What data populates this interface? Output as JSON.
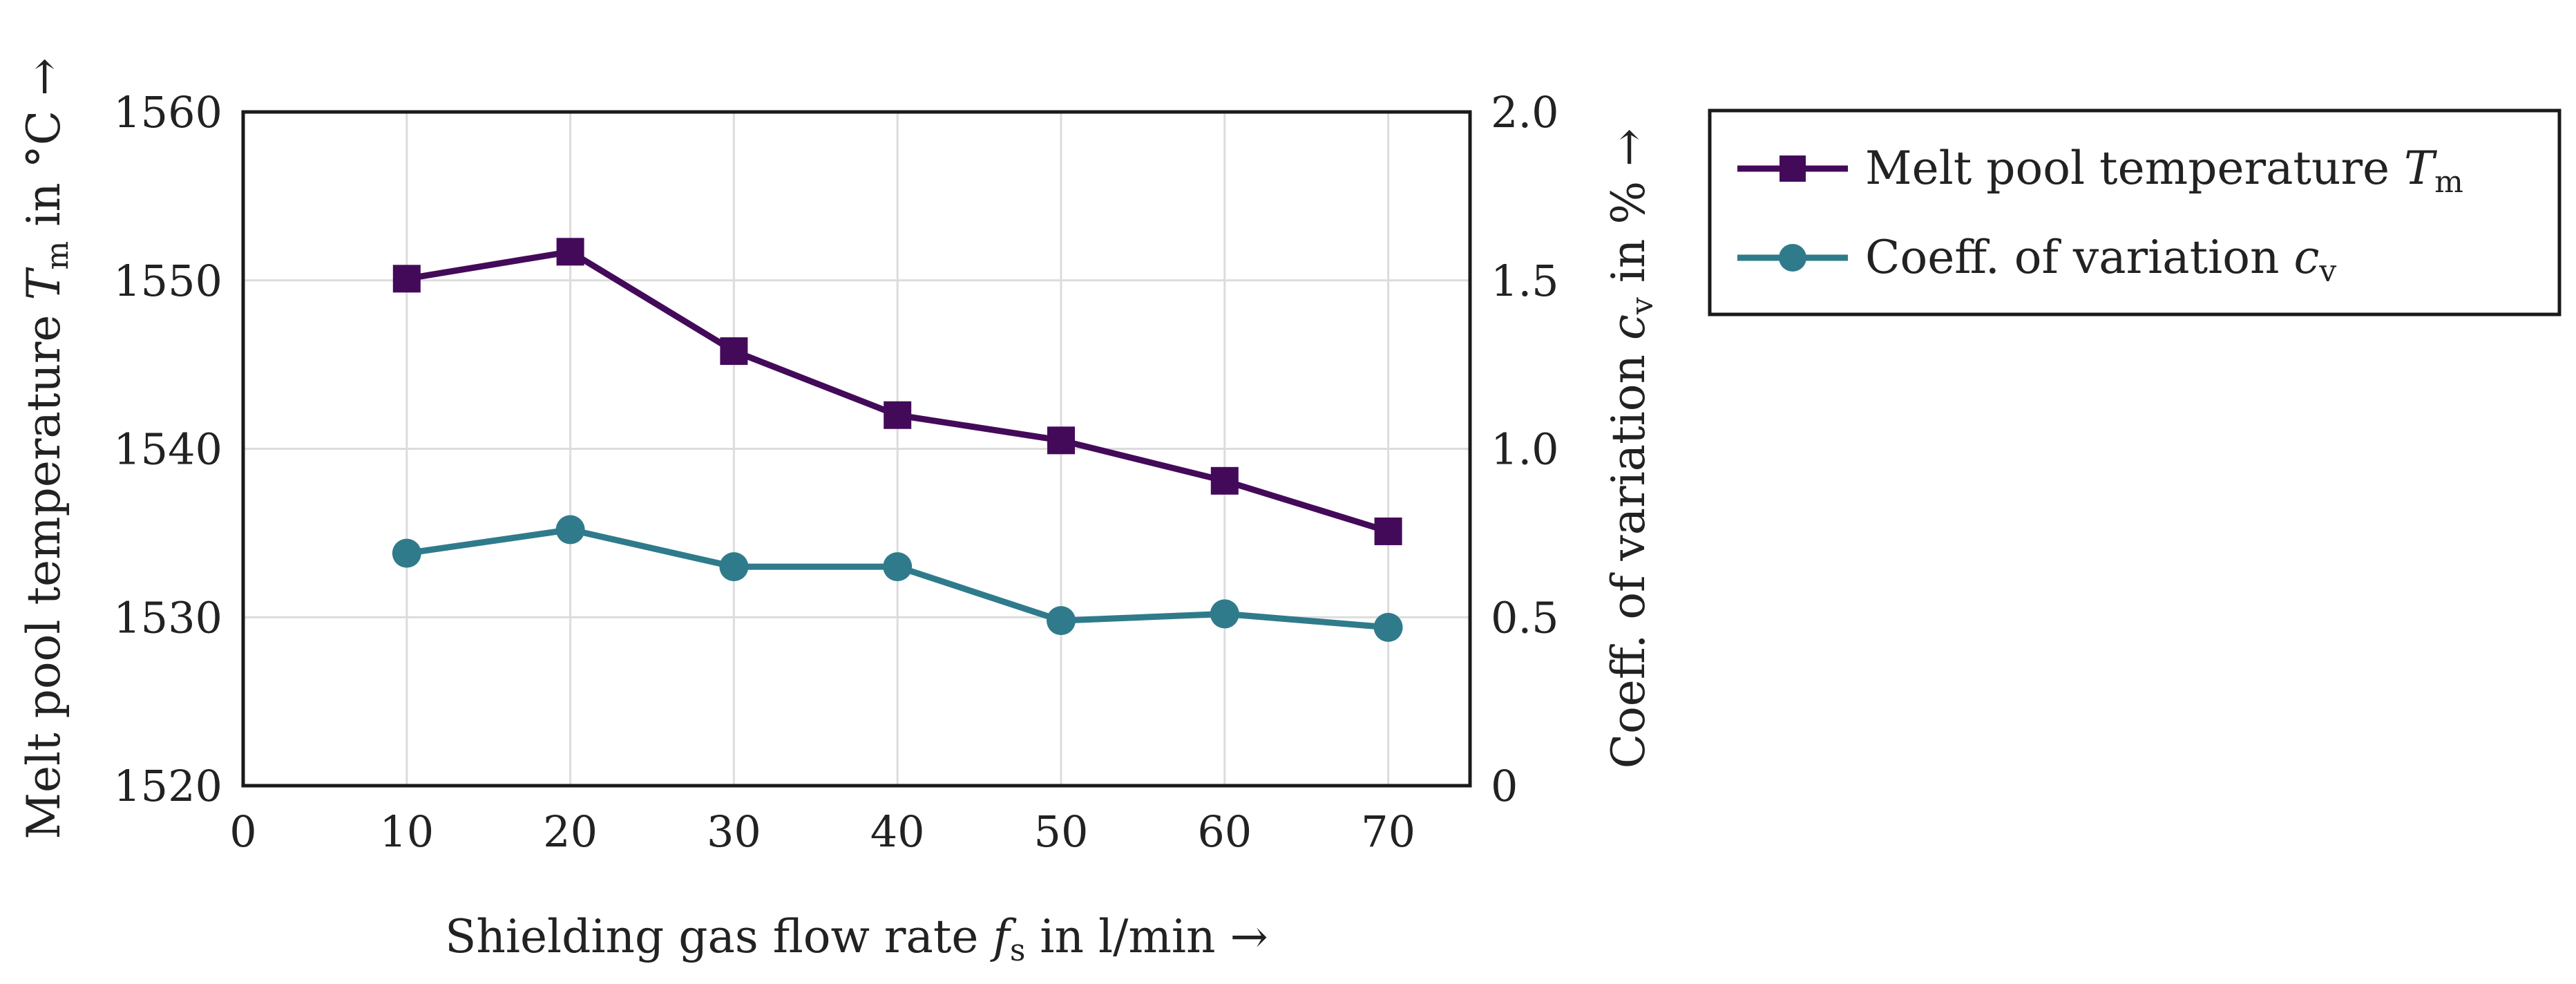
{
  "chart_data": {
    "type": "line",
    "x": [
      10,
      20,
      30,
      40,
      50,
      60,
      70
    ],
    "xlim": [
      0,
      75
    ],
    "xticks": [
      "0",
      "10",
      "20",
      "30",
      "40",
      "50",
      "60",
      "70"
    ],
    "xlabel": "Shielding gas flow rate f_s in l/min →",
    "ylim": [
      1520,
      1560
    ],
    "yticks": [
      "1520",
      "1530",
      "1540",
      "1550",
      "1560"
    ],
    "ylabel": "Melt pool temperature T_m in °C →",
    "y2lim": [
      0,
      2.0
    ],
    "y2ticks": [
      "0",
      "0.5",
      "1.0",
      "1.5",
      "2.0"
    ],
    "y2label": "Coeff. of variation c_v in % →",
    "grid": true,
    "legend_position": "outside-right-top",
    "series": [
      {
        "name": "Melt pool temperature T_m",
        "axis": "left",
        "marker": "square",
        "color": "#440a5a",
        "values": [
          1550.1,
          1551.7,
          1545.8,
          1542.0,
          1540.5,
          1538.1,
          1535.1
        ]
      },
      {
        "name": "Coeff. of variation c_v",
        "axis": "right",
        "marker": "circle",
        "color": "#2f7b8c",
        "values": [
          0.69,
          0.76,
          0.65,
          0.65,
          0.49,
          0.51,
          0.47
        ]
      }
    ]
  },
  "labels": {
    "xlabel_main": "Shielding gas flow rate ",
    "xlabel_sym": "f",
    "xlabel_sub": "s",
    "xlabel_rest": " in l/min →",
    "ylabel_main": "Melt pool temperature ",
    "ylabel_sym": "T",
    "ylabel_sub": "m",
    "ylabel_rest": " in °C →",
    "y2label_main": "Coeff. of variation ",
    "y2label_sym": "c",
    "y2label_sub": "v",
    "y2label_rest": " in % →",
    "legend1_main": "Melt pool temperature ",
    "legend1_sym": "T",
    "legend1_sub": "m",
    "legend2_main": "Coeff. of variation ",
    "legend2_sym": "c",
    "legend2_sub": "v"
  }
}
